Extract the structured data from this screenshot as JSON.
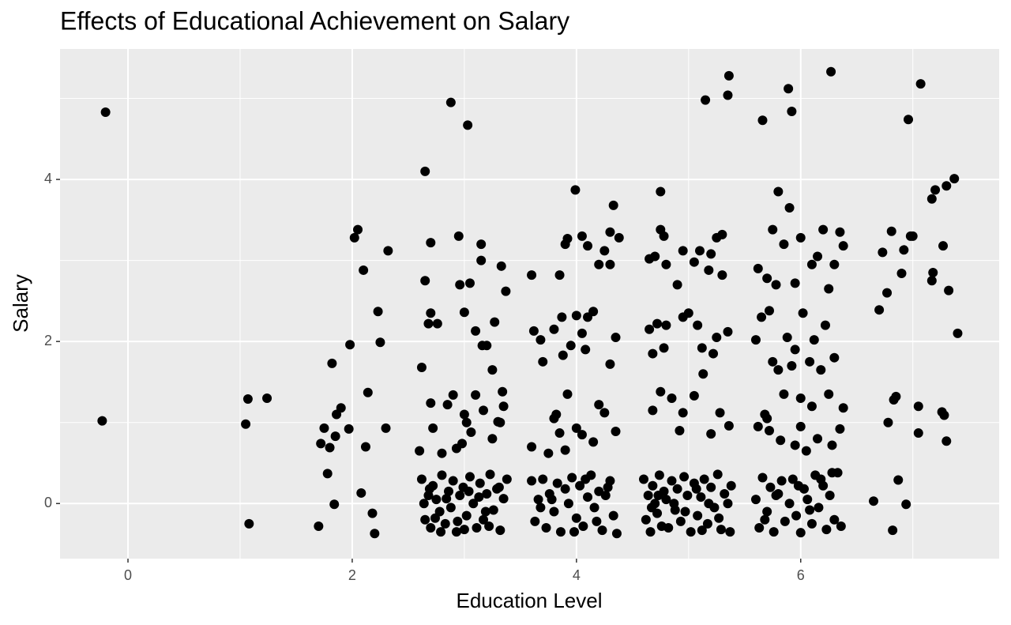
{
  "chart_data": {
    "type": "scatter",
    "title": "Effects of Educational Achievement on Salary",
    "x_label": "Education Level",
    "y_label": "Salary",
    "color": "#000000",
    "panel_background": "#ebebeb",
    "grid": true,
    "xlim": [
      -0.606,
      7.77
    ],
    "ylim": [
      -0.68,
      5.61
    ],
    "xticks": [
      0,
      2,
      4,
      6
    ],
    "yticks": [
      0,
      2,
      4
    ],
    "x_minor_grid": [
      1,
      3,
      5,
      7
    ],
    "y_minor_grid": [
      1,
      3,
      5
    ],
    "x": [
      -0.2,
      -0.23,
      1.05,
      1.07,
      1.08,
      1.24,
      1.7,
      1.72,
      1.75,
      1.78,
      1.8,
      1.82,
      1.84,
      1.85,
      1.86,
      1.9,
      1.98,
      2.02,
      2.05,
      2.1,
      2.08,
      2.12,
      2.14,
      2.18,
      2.2,
      2.23,
      2.25,
      2.3,
      2.32,
      1.97,
      2.88,
      3.03,
      2.65,
      2.65,
      2.7,
      2.95,
      3.05,
      2.96,
      3.15,
      3.33,
      3.37,
      2.7,
      2.68,
      2.76,
      3.0,
      3.2,
      3.27,
      3.1,
      3.25,
      2.62,
      2.7,
      2.9,
      3.1,
      3.34,
      2.85,
      3.0,
      3.17,
      3.35,
      2.72,
      2.93,
      3.06,
      3.25,
      3.3,
      2.6,
      3.15,
      3.02,
      2.8,
      3.32,
      3.16,
      2.98,
      2.62,
      2.65,
      2.68,
      2.7,
      2.72,
      2.75,
      2.78,
      2.8,
      2.83,
      2.86,
      2.88,
      2.9,
      2.93,
      2.96,
      2.99,
      3.02,
      3.05,
      3.08,
      3.11,
      3.14,
      3.17,
      3.2,
      3.23,
      3.26,
      3.29,
      3.32,
      3.35,
      3.38,
      2.64,
      2.74,
      2.84,
      2.94,
      3.04,
      3.13,
      3.22,
      3.31,
      2.69,
      2.79,
      3.0,
      3.19,
      3.99,
      4.33,
      4.3,
      4.25,
      4.05,
      3.92,
      3.9,
      4.38,
      4.2,
      4.1,
      4.0,
      4.15,
      4.3,
      3.6,
      3.68,
      3.85,
      3.87,
      3.62,
      3.8,
      3.95,
      4.05,
      4.1,
      4.35,
      3.88,
      3.7,
      4.08,
      4.3,
      3.92,
      3.82,
      4.2,
      4.0,
      3.85,
      4.25,
      4.35,
      3.6,
      3.75,
      3.9,
      4.15,
      4.05,
      3.8,
      3.6,
      3.63,
      3.66,
      3.7,
      3.73,
      3.76,
      3.8,
      3.83,
      3.86,
      3.9,
      3.93,
      3.96,
      4.0,
      4.03,
      4.06,
      4.1,
      4.13,
      4.16,
      4.2,
      4.23,
      4.26,
      4.3,
      4.33,
      4.36,
      3.68,
      3.78,
      3.98,
      4.08,
      4.18,
      4.28,
      5.15,
      5.35,
      5.36,
      4.75,
      5.3,
      5.25,
      4.78,
      4.7,
      4.95,
      5.05,
      5.2,
      4.8,
      4.9,
      5.1,
      5.3,
      4.65,
      4.75,
      5.0,
      5.18,
      4.72,
      4.65,
      4.8,
      4.95,
      5.08,
      5.25,
      5.35,
      4.68,
      4.78,
      5.12,
      5.22,
      5.13,
      4.75,
      4.85,
      4.95,
      5.05,
      5.28,
      4.68,
      5.2,
      4.92,
      5.36,
      4.6,
      4.62,
      4.64,
      4.66,
      4.68,
      4.7,
      4.72,
      4.74,
      4.76,
      4.78,
      4.8,
      4.82,
      4.85,
      4.88,
      4.9,
      4.93,
      4.96,
      4.99,
      5.02,
      5.05,
      5.08,
      5.11,
      5.14,
      5.17,
      5.2,
      5.23,
      5.26,
      5.29,
      5.32,
      5.35,
      5.38,
      4.67,
      4.87,
      4.97,
      5.07,
      5.18,
      5.27,
      5.37,
      4.73,
      5.12,
      5.66,
      5.89,
      5.92,
      6.27,
      5.8,
      5.9,
      5.75,
      6.2,
      6.3,
      6.35,
      5.62,
      5.7,
      5.85,
      6.0,
      6.1,
      6.25,
      6.38,
      5.95,
      6.15,
      5.78,
      5.65,
      5.72,
      5.88,
      6.02,
      6.12,
      6.22,
      5.6,
      5.75,
      5.95,
      6.3,
      5.8,
      5.92,
      6.08,
      6.18,
      5.68,
      5.85,
      6.0,
      6.1,
      6.25,
      6.38,
      5.62,
      5.72,
      5.82,
      5.95,
      6.05,
      6.15,
      6.28,
      5.7,
      6.0,
      6.35,
      5.6,
      5.63,
      5.66,
      5.7,
      5.73,
      5.76,
      5.8,
      5.83,
      5.86,
      5.9,
      5.93,
      5.96,
      6.0,
      6.03,
      6.06,
      6.1,
      6.13,
      6.16,
      6.2,
      6.23,
      6.26,
      6.3,
      6.33,
      6.36,
      5.68,
      5.78,
      5.98,
      6.08,
      6.18,
      6.28,
      7.07,
      6.96,
      7.37,
      7.3,
      7.2,
      7.17,
      7.4,
      7.27,
      7.0,
      7.32,
      6.73,
      6.81,
      6.92,
      7.18,
      6.7,
      6.77,
      6.9,
      6.98,
      7.05,
      7.26,
      7.17,
      6.85,
      6.78,
      6.83,
      7.05,
      7.28,
      7.3,
      6.65,
      6.87,
      6.94,
      6.82
    ],
    "values": [
      4.83,
      1.02,
      0.98,
      1.29,
      -0.25,
      1.3,
      -0.28,
      0.74,
      0.93,
      0.37,
      0.69,
      1.73,
      -0.01,
      0.83,
      1.1,
      1.18,
      1.96,
      3.28,
      3.38,
      2.88,
      0.13,
      0.7,
      1.37,
      -0.12,
      -0.37,
      2.37,
      1.99,
      0.93,
      3.12,
      0.92,
      4.95,
      4.67,
      4.1,
      2.75,
      3.22,
      3.3,
      2.72,
      2.7,
      3.2,
      2.93,
      2.62,
      2.35,
      2.22,
      2.22,
      2.36,
      1.95,
      2.24,
      2.13,
      1.65,
      1.68,
      1.24,
      1.34,
      1.34,
      1.38,
      1.22,
      1.1,
      1.15,
      1.2,
      0.93,
      0.68,
      0.88,
      0.8,
      1.01,
      0.65,
      3.0,
      1.0,
      0.62,
      1.0,
      1.95,
      0.74,
      0.3,
      -0.2,
      0.1,
      -0.3,
      0.22,
      0.05,
      -0.1,
      0.35,
      -0.25,
      0.15,
      -0.05,
      0.28,
      -0.35,
      0.1,
      0.2,
      -0.15,
      0.33,
      0.0,
      -0.3,
      0.25,
      -0.2,
      0.12,
      0.36,
      -0.08,
      0.18,
      -0.33,
      0.06,
      0.3,
      0.0,
      -0.18,
      0.06,
      -0.22,
      0.15,
      0.08,
      -0.28,
      0.2,
      0.18,
      -0.35,
      -0.32,
      -0.1,
      3.87,
      3.68,
      3.35,
      3.12,
      3.3,
      3.27,
      3.2,
      3.28,
      2.95,
      3.18,
      2.32,
      2.37,
      2.95,
      2.82,
      2.02,
      2.82,
      2.3,
      2.13,
      2.15,
      1.95,
      2.1,
      2.3,
      2.05,
      1.83,
      1.75,
      1.9,
      1.72,
      1.35,
      1.1,
      1.22,
      0.93,
      0.87,
      1.12,
      0.89,
      0.7,
      0.62,
      0.66,
      0.76,
      0.85,
      1.05,
      0.28,
      -0.22,
      0.05,
      0.3,
      -0.3,
      0.12,
      -0.1,
      0.25,
      -0.35,
      0.18,
      0.0,
      0.32,
      -0.18,
      0.22,
      -0.28,
      0.08,
      0.35,
      -0.05,
      0.15,
      -0.33,
      0.1,
      0.28,
      -0.15,
      -0.37,
      -0.05,
      0.05,
      -0.35,
      0.3,
      -0.22,
      0.2,
      4.98,
      5.04,
      5.28,
      3.85,
      3.32,
      3.28,
      3.3,
      3.05,
      3.12,
      2.98,
      3.08,
      2.95,
      2.7,
      3.12,
      2.82,
      3.02,
      3.38,
      2.35,
      2.88,
      2.22,
      2.15,
      2.2,
      2.3,
      2.2,
      2.05,
      2.12,
      1.85,
      1.92,
      1.92,
      1.85,
      1.6,
      1.38,
      1.3,
      1.12,
      1.33,
      1.12,
      1.15,
      0.86,
      0.9,
      0.96,
      0.3,
      -0.2,
      0.1,
      -0.35,
      0.22,
      0.0,
      -0.12,
      0.35,
      -0.28,
      0.15,
      0.05,
      -0.3,
      0.28,
      -0.08,
      0.18,
      -0.22,
      0.33,
      0.1,
      -0.35,
      0.25,
      -0.15,
      0.08,
      0.3,
      -0.25,
      0.2,
      -0.05,
      0.36,
      -0.32,
      0.12,
      0.0,
      0.22,
      -0.05,
      0.0,
      -0.1,
      0.18,
      0.0,
      -0.18,
      -0.35,
      0.1,
      -0.33,
      4.73,
      5.12,
      4.84,
      5.33,
      3.85,
      3.65,
      3.38,
      3.38,
      2.95,
      3.35,
      2.9,
      2.78,
      3.2,
      3.28,
      2.95,
      2.65,
      3.18,
      2.72,
      3.05,
      2.7,
      2.3,
      2.38,
      2.05,
      2.35,
      2.02,
      2.2,
      2.02,
      1.75,
      1.9,
      1.8,
      1.65,
      1.7,
      1.75,
      1.65,
      1.1,
      1.35,
      1.3,
      1.2,
      1.35,
      1.18,
      0.95,
      0.9,
      0.78,
      0.72,
      0.65,
      0.8,
      0.72,
      1.05,
      0.95,
      0.92,
      0.05,
      -0.3,
      0.32,
      -0.1,
      0.2,
      -0.35,
      0.12,
      0.28,
      -0.22,
      0.0,
      0.3,
      -0.15,
      -0.36,
      0.18,
      0.05,
      -0.25,
      0.35,
      -0.05,
      0.22,
      -0.32,
      0.1,
      -0.2,
      0.38,
      -0.28,
      -0.2,
      0.1,
      0.22,
      -0.08,
      0.3,
      0.38,
      5.18,
      4.74,
      4.01,
      3.92,
      3.87,
      3.76,
      2.1,
      3.18,
      3.3,
      2.63,
      3.1,
      3.36,
      3.13,
      2.85,
      2.39,
      2.6,
      2.84,
      3.3,
      1.2,
      1.13,
      2.75,
      1.32,
      1.0,
      1.28,
      0.87,
      1.09,
      0.77,
      0.03,
      0.29,
      -0.01,
      -0.33
    ]
  }
}
